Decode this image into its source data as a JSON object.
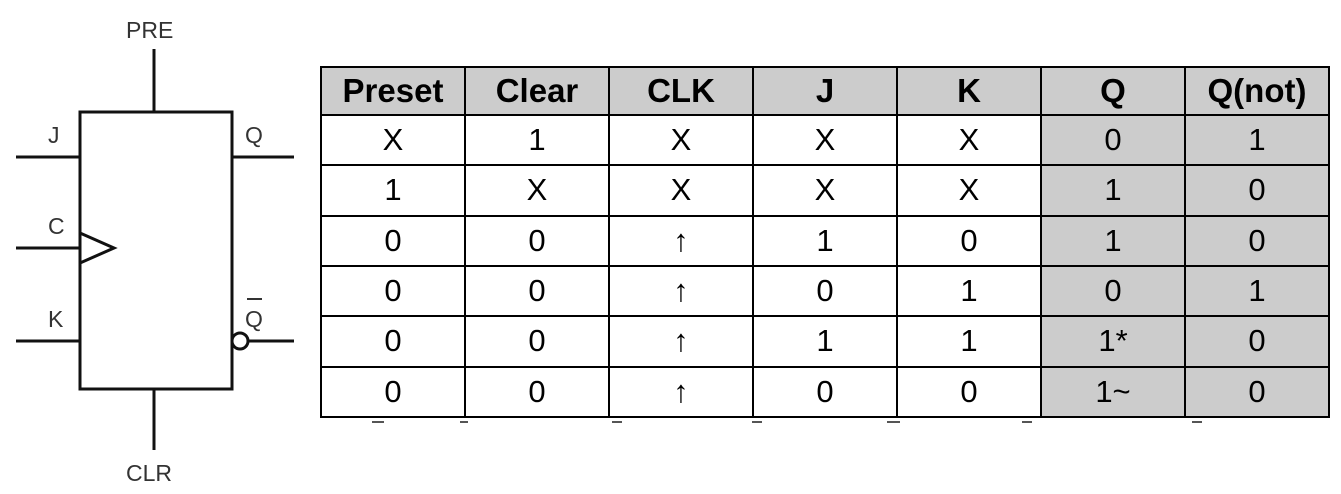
{
  "diagram": {
    "pins": {
      "pre": "PRE",
      "clr": "CLR",
      "j": "J",
      "c": "C",
      "k": "K",
      "q": "Q",
      "qbar": "Q"
    }
  },
  "table": {
    "headers": [
      "Preset",
      "Clear",
      "CLK",
      "J",
      "K",
      "Q",
      "Q(not)"
    ],
    "rows": [
      [
        "X",
        "1",
        "X",
        "X",
        "X",
        "0",
        "1"
      ],
      [
        "1",
        "X",
        "X",
        "X",
        "X",
        "1",
        "0"
      ],
      [
        "0",
        "0",
        "↑",
        "1",
        "0",
        "1",
        "0"
      ],
      [
        "0",
        "0",
        "↑",
        "0",
        "1",
        "0",
        "1"
      ],
      [
        "0",
        "0",
        "↑",
        "1",
        "1",
        "1*",
        "0"
      ],
      [
        "0",
        "0",
        "↑",
        "0",
        "0",
        "1~",
        "0"
      ]
    ]
  },
  "colors": {
    "header_bg": "#cccccc",
    "output_bg": "#cccccc",
    "border": "#000000"
  }
}
